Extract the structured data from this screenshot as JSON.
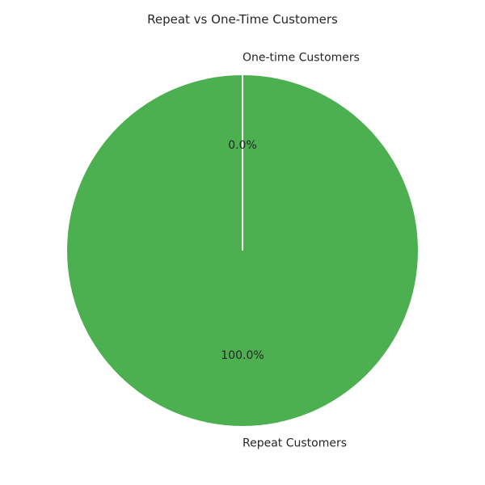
{
  "chart_data": {
    "type": "pie",
    "title": "Repeat vs One-Time Customers",
    "start_angle_deg": 90,
    "direction": "counterclockwise",
    "slices": [
      {
        "label": "Repeat Customers",
        "value": 100.0,
        "percent_label": "100.0%",
        "color": "#4caf50"
      },
      {
        "label": "One-time Customers",
        "value": 0.0,
        "percent_label": "0.0%",
        "color": "#ffffff"
      }
    ]
  }
}
